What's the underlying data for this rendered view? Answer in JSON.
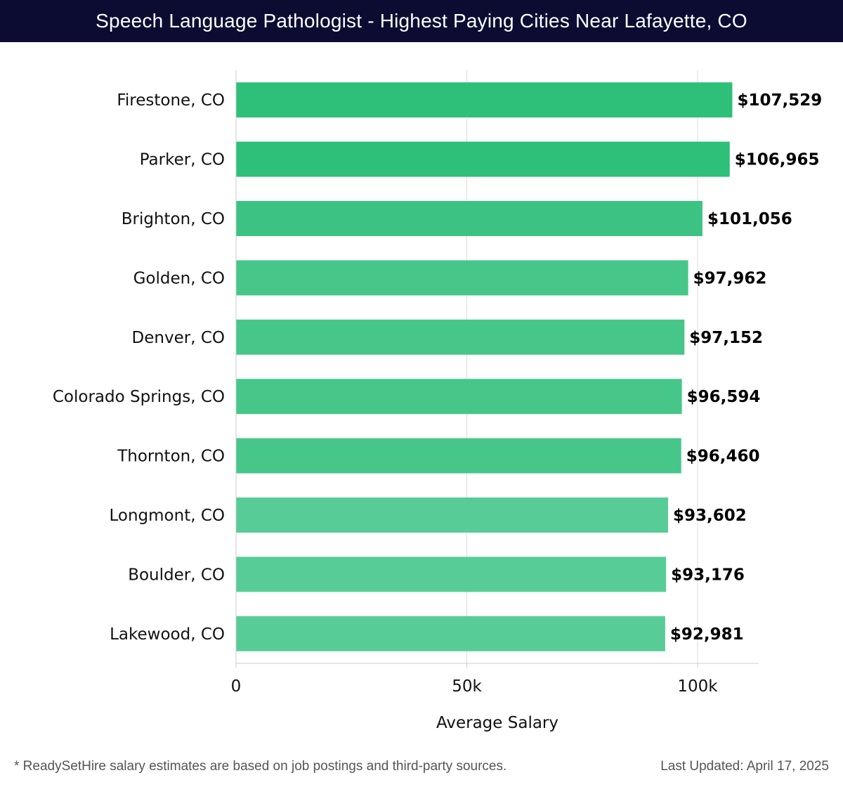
{
  "header": {
    "title": "Speech Language Pathologist - Highest Paying Cities Near Lafayette, CO",
    "background": "#0c0c33"
  },
  "chart_data": {
    "type": "bar",
    "orientation": "horizontal",
    "title": "Speech Language Pathologist - Highest Paying Cities Near Lafayette, CO",
    "xlabel": "Average Salary",
    "ylabel": "",
    "xlim": [
      0,
      113000
    ],
    "xticks": [
      0,
      50000,
      100000
    ],
    "xtick_labels": [
      "0",
      "50k",
      "100k"
    ],
    "grid": true,
    "categories": [
      "Firestone, CO",
      "Parker, CO",
      "Brighton, CO",
      "Golden, CO",
      "Denver, CO",
      "Colorado Springs, CO",
      "Thornton, CO",
      "Longmont, CO",
      "Boulder, CO",
      "Lakewood, CO"
    ],
    "values": [
      107529,
      106965,
      101056,
      97962,
      97152,
      96594,
      96460,
      93602,
      93176,
      92981
    ],
    "value_labels": [
      "$107,529",
      "$106,965",
      "$101,056",
      "$97,962",
      "$97,152",
      "$96,594",
      "$96,460",
      "$93,602",
      "$93,176",
      "$92,981"
    ],
    "bar_colors": [
      "#2ebf78",
      "#2ebf78",
      "#3cc383",
      "#47c68a",
      "#47c68a",
      "#47c68a",
      "#47c68a",
      "#58cc96",
      "#58cc96",
      "#58cc96"
    ]
  },
  "footer": {
    "note": "* ReadySetHire salary estimates are based on job postings and third-party sources.",
    "updated": "Last Updated: April 17, 2025"
  }
}
